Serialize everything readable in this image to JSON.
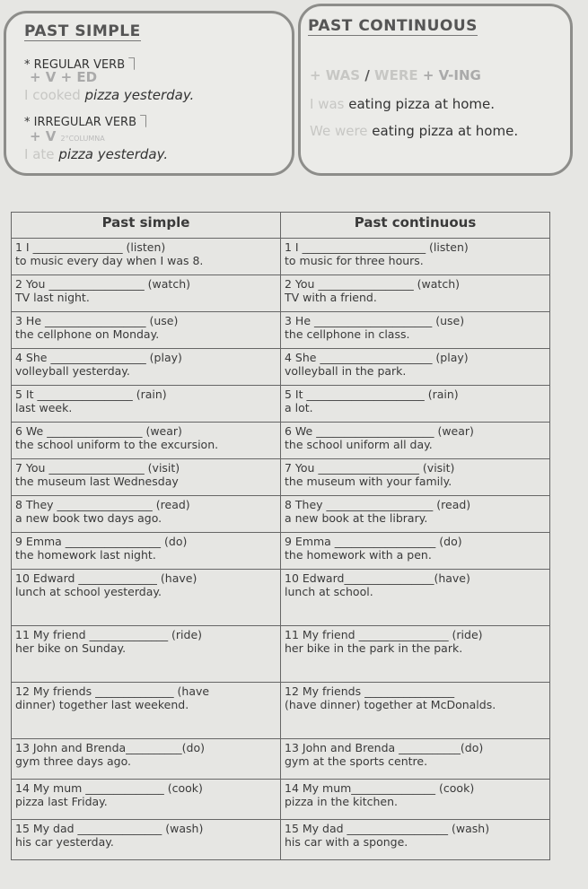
{
  "past_simple_box": {
    "title": "PAST SIMPLE",
    "regular_label": "* REGULAR VERB ⏋",
    "regular_formula_faint": "",
    "regular_formula": "+ V + ED",
    "regular_example_faint": "I",
    "regular_example_verb": "cooked",
    "regular_example_rest": "pizza yesterday.",
    "irregular_label": "* IRREGULAR VERB ⏋",
    "irregular_formula": "+ V",
    "irregular_column": "2°COLUMNA",
    "irregular_example_faint": "I",
    "irregular_example_verb": "ate",
    "irregular_example_rest": "pizza yesterday."
  },
  "past_continuous_box": {
    "title": "PAST CONTINUOUS",
    "formula_a": "+ WAS",
    "formula_slash": "/",
    "formula_b": "WERE",
    "formula_c": "+ V-ING",
    "example1_faint": "I was",
    "example1": "eating pizza at home.",
    "example2_faint": "We were",
    "example2": "eating pizza at home."
  },
  "table": {
    "headers": [
      "Past simple",
      "Past continuous"
    ],
    "rows": [
      {
        "ls": "1 I ________________ (listen)",
        "ls2": "to music every day when I was 8.",
        "rs": "1 I ______________________ (listen)",
        "rs2": "to music for three hours."
      },
      {
        "ls": "2 You _________________ (watch)",
        "ls2": "TV last night.",
        "rs": "2 You _________________ (watch)",
        "rs2": "TV with a friend."
      },
      {
        "ls": "3 He __________________ (use)",
        "ls2": "the cellphone on Monday.",
        "rs": "3 He _____________________ (use)",
        "rs2": "the cellphone in class."
      },
      {
        "ls": "4 She _________________ (play)",
        "ls2": "volleyball yesterday.",
        "rs": "4 She ____________________ (play)",
        "rs2": "volleyball in the park."
      },
      {
        "ls": "5 It _________________ (rain)",
        "ls2": "last week.",
        "rs": "5 It _____________________ (rain)",
        "rs2": "a lot."
      },
      {
        "ls": "6 We _________________ (wear)",
        "ls2": "the school uniform to the excursion.",
        "rs": "6 We _____________________ (wear)",
        "rs2": "the school uniform all day."
      },
      {
        "ls": "7 You _________________ (visit)",
        "ls2": "the museum last Wednesday",
        "rs": "7 You __________________ (visit)",
        "rs2": "the museum with your family."
      },
      {
        "ls": "8 They _________________ (read)",
        "ls2": "a new book two days ago.",
        "rs": "8 They ___________________ (read)",
        "rs2": "a new book at the library."
      },
      {
        "ls": "9 Emma _________________ (do)",
        "ls2": "the homework last night.",
        "rs": "9 Emma __________________ (do)",
        "rs2": "the homework with a pen."
      },
      {
        "ls": "10 Edward ______________ (have)",
        "ls2": "lunch at school yesterday.",
        "rs": "10 Edward________________(have)",
        "rs2": "lunch at school."
      },
      {
        "ls": "11 My friend ______________ (ride)",
        "ls2": "her bike on Sunday.",
        "rs": "11 My friend ________________ (ride)",
        "rs2": "her bike in the park in the park."
      },
      {
        "ls": "12 My friends ______________ (have",
        "ls2": "dinner) together last weekend.",
        "rs": "12 My friends ________________",
        "rs2": "(have dinner) together at McDonalds."
      },
      {
        "ls": "13 John and Brenda__________(do)",
        "ls2": "gym three days ago.",
        "rs": "13 John and Brenda ___________(do)",
        "rs2": "gym at the sports centre."
      },
      {
        "ls": "14 My mum ______________ (cook)",
        "ls2": "pizza last Friday.",
        "rs": "14 My mum_______________ (cook)",
        "rs2": "pizza in the kitchen."
      },
      {
        "ls": "15 My dad _______________ (wash)",
        "ls2": "his car yesterday.",
        "rs": "15 My dad __________________ (wash)",
        "rs2": "his car with a sponge."
      }
    ]
  }
}
